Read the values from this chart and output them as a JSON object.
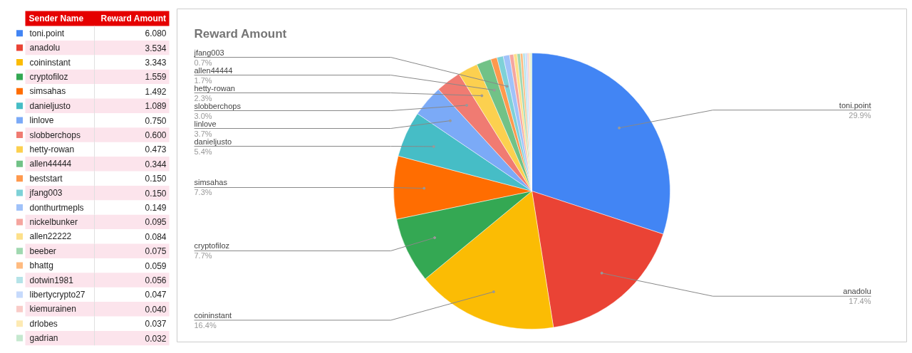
{
  "chart_data": {
    "type": "pie",
    "title": "Reward Amount",
    "categories": [
      "toni.point",
      "anadolu",
      "coininstant",
      "cryptofiloz",
      "simsahas",
      "danieljusto",
      "linlove",
      "slobberchops",
      "hetty-rowan",
      "allen44444",
      "beststart",
      "jfang003",
      "donthurtmepls",
      "nickelbunker",
      "allen22222",
      "beeber",
      "bhattg",
      "dotwin1981",
      "libertycrypto27",
      "kiemurainen",
      "drlobes",
      "gadrian"
    ],
    "values": [
      6.08,
      3.534,
      3.343,
      1.559,
      1.492,
      1.089,
      0.75,
      0.6,
      0.473,
      0.344,
      0.15,
      0.15,
      0.149,
      0.095,
      0.084,
      0.075,
      0.059,
      0.056,
      0.047,
      0.04,
      0.037,
      0.032
    ],
    "value_labels": [
      "6.080",
      "3.534",
      "3.343",
      "1.559",
      "1.492",
      "1.089",
      "0.750",
      "0.600",
      "0.473",
      "0.344",
      "0.150",
      "0.150",
      "0.149",
      "0.095",
      "0.084",
      "0.075",
      "0.059",
      "0.056",
      "0.047",
      "0.040",
      "0.037",
      "0.032"
    ],
    "colors": [
      "#4285f4",
      "#ea4335",
      "#fbbc04",
      "#34a853",
      "#ff6d01",
      "#46bdc6",
      "#7baaf7",
      "#f07b72",
      "#fcd04f",
      "#71c287",
      "#ff994d",
      "#7ed1d7",
      "#a0c2f9",
      "#f5a59f",
      "#fde08a",
      "#a0d8b0",
      "#ffbb80",
      "#b5e3e8",
      "#c6dafc",
      "#f9cbc8",
      "#fdeab3",
      "#c5e8cf"
    ],
    "annotations": [
      "Sender Name",
      "Reward Amount",
      {
        "text": "29.9%",
        "x": "toni.point"
      },
      {
        "text": "17.4%",
        "x": "anadolu"
      },
      {
        "text": "16.4%",
        "x": "coininstant"
      },
      {
        "text": "7.7%",
        "x": "cryptofiloz"
      },
      {
        "text": "7.3%",
        "x": "simsahas"
      },
      {
        "text": "5.4%",
        "x": "danieljusto"
      },
      {
        "text": "3.7%",
        "x": "linlove"
      },
      {
        "text": "3.0%",
        "x": "slobberchops"
      },
      {
        "text": "2.3%",
        "x": "hetty-rowan"
      },
      {
        "text": "1.7%",
        "x": "allen44444"
      },
      {
        "text": "0.7%",
        "x": "jfang003"
      }
    ],
    "legend": "left"
  }
}
